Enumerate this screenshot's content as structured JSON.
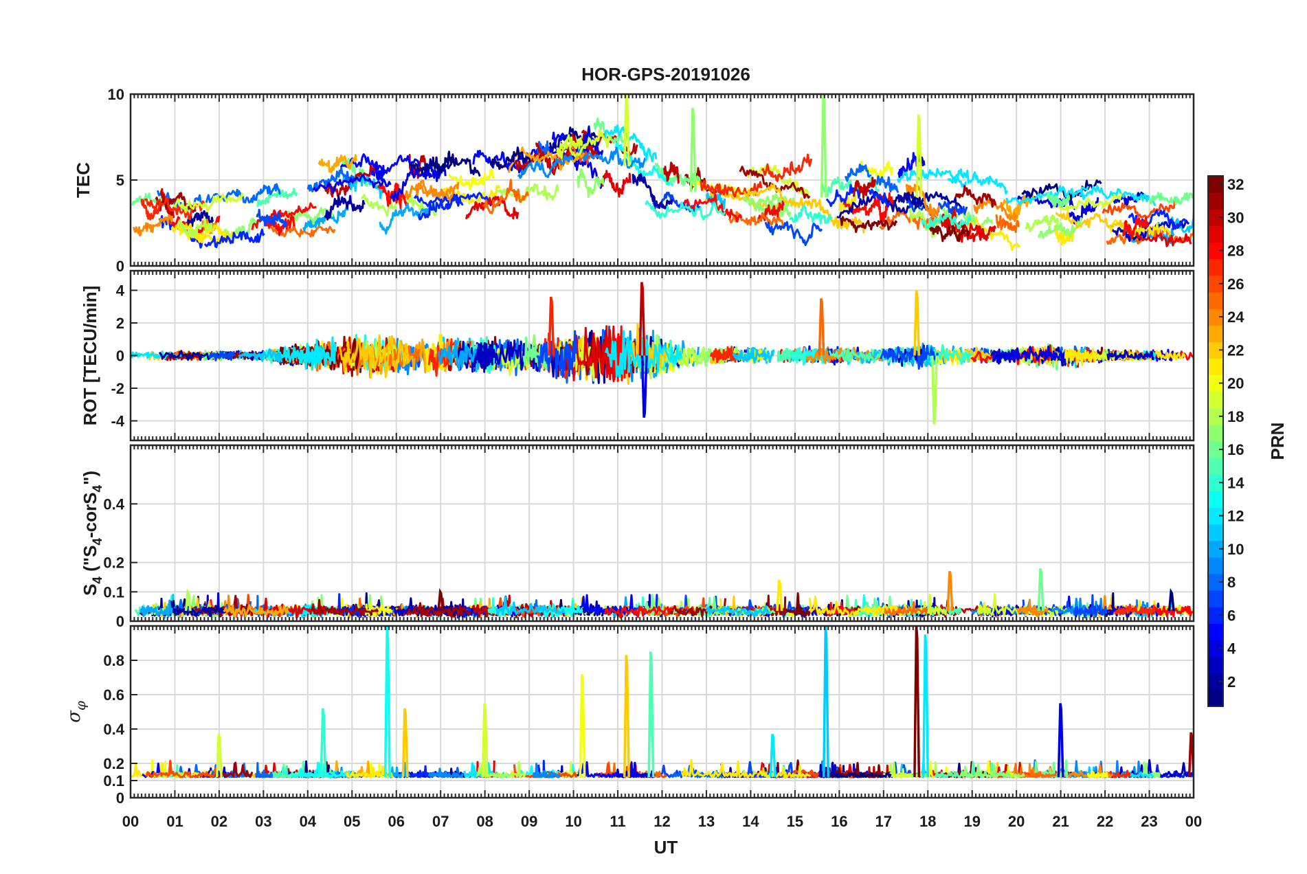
{
  "chart_data": {
    "type": "line",
    "title": "HOR-GPS-20191026",
    "xlabel": "UT",
    "x_tick_labels": [
      "00",
      "01",
      "02",
      "03",
      "04",
      "05",
      "06",
      "07",
      "08",
      "09",
      "10",
      "11",
      "12",
      "13",
      "14",
      "15",
      "16",
      "17",
      "18",
      "19",
      "20",
      "21",
      "22",
      "23",
      "00"
    ],
    "xlim": [
      0,
      24
    ],
    "grid": true,
    "colorbar": {
      "label": "PRN",
      "colormap": "jet",
      "range": [
        1,
        32
      ],
      "tick_labels": [
        "2",
        "4",
        "6",
        "8",
        "10",
        "12",
        "14",
        "16",
        "18",
        "20",
        "22",
        "24",
        "26",
        "28",
        "30",
        "32"
      ]
    },
    "panels": [
      {
        "id": "tec",
        "ylabel": "TEC",
        "ylim": [
          0,
          10
        ],
        "y_ticks": [
          0,
          5,
          10
        ],
        "y_tick_labels": [
          "0",
          "5",
          "10"
        ],
        "series_summary": "Per-PRN TEC tracks; values mostly 0.5-7 TECU, rising from ~2-3 at 00 UT to peaks of ~6-10 around 10-12 UT, then 2-6 after 13 UT",
        "envelope_ut": [
          0,
          2,
          4,
          6,
          8,
          9,
          10,
          11,
          12,
          13,
          15,
          16,
          18,
          20,
          21,
          22,
          23,
          24
        ],
        "envelope_center": [
          2.8,
          2.7,
          3.8,
          4.6,
          4.8,
          5.4,
          5.8,
          6.0,
          5.0,
          4.0,
          4.0,
          4.0,
          4.0,
          3.0,
          3.0,
          3.2,
          3.0,
          3.0
        ],
        "envelope_spread": [
          1.2,
          1.1,
          1.3,
          1.4,
          1.4,
          1.5,
          1.6,
          1.8,
          1.6,
          1.2,
          1.4,
          1.4,
          1.4,
          1.2,
          1.2,
          1.3,
          1.3,
          1.3
        ],
        "peaks": [
          {
            "ut": 11.2,
            "value": 10.0
          },
          {
            "ut": 15.65,
            "value": 10.0
          },
          {
            "ut": 12.7,
            "value": 9.2
          },
          {
            "ut": 17.8,
            "value": 8.8
          }
        ]
      },
      {
        "id": "rot",
        "ylabel": "ROT [TECU/min]",
        "ylim": [
          -5.2,
          5.2
        ],
        "y_ticks": [
          -4,
          -2,
          0,
          2,
          4
        ],
        "y_tick_labels": [
          "-4",
          "-2",
          "0",
          "2",
          "4"
        ],
        "series_summary": "Rate of TEC; noise about 0 with amplitude ~0.3 quiet, ~1-2 during 04-13 UT; spikes to about +4.5 / -3.8 near 11.5 UT and +4 / -4.2 near 17.8-18.2 UT",
        "envelope_ut": [
          0,
          3,
          4,
          5,
          6,
          8,
          9,
          10,
          11,
          12,
          13,
          15,
          16,
          17,
          18,
          19,
          20,
          21,
          22,
          23,
          24
        ],
        "envelope_amplitude": [
          0.3,
          0.3,
          1.0,
          1.4,
          1.4,
          1.1,
          1.2,
          1.6,
          2.0,
          1.4,
          0.6,
          0.5,
          0.6,
          0.5,
          0.8,
          0.5,
          0.5,
          0.9,
          0.4,
          0.3,
          0.4
        ],
        "peaks": [
          {
            "ut": 11.55,
            "value": 4.5
          },
          {
            "ut": 11.6,
            "value": -3.8
          },
          {
            "ut": 17.75,
            "value": 4.0
          },
          {
            "ut": 18.15,
            "value": -4.2
          },
          {
            "ut": 9.5,
            "value": 3.6
          },
          {
            "ut": 15.6,
            "value": 3.5
          }
        ]
      },
      {
        "id": "s4",
        "ylabel": "S4 (\"S4-corS4\")",
        "ylabel_parts": {
          "main": "S",
          "sub1": "4",
          "mid": " (\"S",
          "sub2": "4",
          "mid2": "-corS",
          "sub3": "4",
          "end": "\")"
        },
        "ylim": [
          0,
          0.6
        ],
        "y_ticks": [
          0,
          0.1,
          0.2,
          0.4
        ],
        "y_tick_labels": [
          "0",
          "0.1",
          "0.2",
          "0.4"
        ],
        "series_summary": "Amplitude scintillation index; mostly 0.02-0.06, occasional spikes to ~0.1-0.18",
        "baseline": 0.035,
        "peaks": [
          {
            "ut": 20.55,
            "value": 0.18
          },
          {
            "ut": 18.5,
            "value": 0.17
          },
          {
            "ut": 14.65,
            "value": 0.14
          },
          {
            "ut": 1.3,
            "value": 0.1
          },
          {
            "ut": 7.0,
            "value": 0.1
          },
          {
            "ut": 23.5,
            "value": 0.1
          }
        ]
      },
      {
        "id": "sigphi",
        "ylabel": "σ φ",
        "ylabel_parts": {
          "main": "σ",
          "sub": "φ"
        },
        "ylim": [
          0,
          1.0
        ],
        "y_ticks": [
          0,
          0.1,
          0.2,
          0.4,
          0.6,
          0.8
        ],
        "y_tick_labels": [
          "0",
          "0.1",
          "0.2",
          "0.4",
          "0.6",
          "0.8"
        ],
        "series_summary": "Phase scintillation index; baseline ~0.1-0.15 with spikes: ~1.0 near 05.8, 15.7, 17.7-18 UT; 0.7-0.85 near 11-12 UT; ~0.55 near 8 and 21 UT; 0.38 near 2 and 23.9 UT",
        "baseline": 0.12,
        "peaks": [
          {
            "ut": 5.8,
            "value": 1.0
          },
          {
            "ut": 15.7,
            "value": 1.0
          },
          {
            "ut": 17.75,
            "value": 1.0
          },
          {
            "ut": 17.95,
            "value": 0.95
          },
          {
            "ut": 11.75,
            "value": 0.85
          },
          {
            "ut": 11.2,
            "value": 0.83
          },
          {
            "ut": 10.2,
            "value": 0.72
          },
          {
            "ut": 8.0,
            "value": 0.55
          },
          {
            "ut": 21.0,
            "value": 0.55
          },
          {
            "ut": 6.2,
            "value": 0.52
          },
          {
            "ut": 4.35,
            "value": 0.52
          },
          {
            "ut": 2.0,
            "value": 0.37
          },
          {
            "ut": 14.5,
            "value": 0.37
          },
          {
            "ut": 23.95,
            "value": 0.38
          }
        ]
      }
    ]
  }
}
